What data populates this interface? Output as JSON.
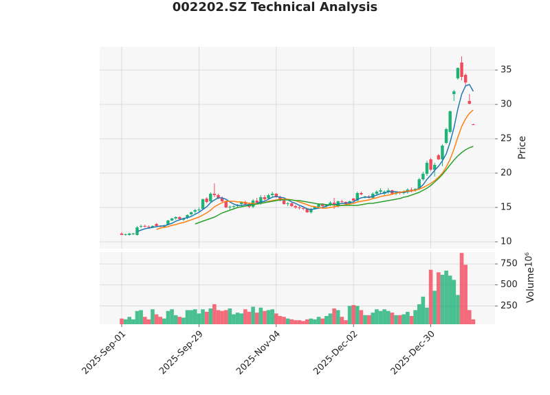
{
  "chart_data": {
    "type": "candlestick",
    "title": "002202.SZ Technical Analysis",
    "y_label": "Price",
    "up_color": "#1eb277",
    "down_color": "#f2495c",
    "grid": true,
    "ylim": [
      9,
      38.4
    ],
    "yticks": [
      10,
      15,
      20,
      25,
      30,
      35
    ],
    "categories": [
      "2025-Sep-01",
      null,
      null,
      null,
      null,
      null,
      null,
      null,
      null,
      null,
      null,
      null,
      null,
      null,
      null,
      null,
      null,
      null,
      null,
      null,
      "2025-Sep-29",
      null,
      null,
      null,
      null,
      null,
      null,
      null,
      null,
      null,
      null,
      null,
      null,
      null,
      null,
      null,
      null,
      null,
      null,
      null,
      "2025-Nov-04",
      null,
      null,
      null,
      null,
      null,
      null,
      null,
      null,
      null,
      null,
      null,
      null,
      null,
      null,
      null,
      null,
      null,
      null,
      null,
      "2025-Dec-02",
      null,
      null,
      null,
      null,
      null,
      null,
      null,
      null,
      null,
      null,
      null,
      null,
      null,
      null,
      null,
      null,
      null,
      null,
      null,
      "2025-Dec-30",
      null,
      null,
      null,
      null,
      null,
      null,
      null,
      null,
      null,
      null,
      null
    ],
    "open": [
      11.2,
      11.0,
      11.0,
      11.1,
      11.0,
      12.2,
      12.3,
      12.2,
      12.1,
      12.6,
      12.3,
      12.2,
      12.5,
      13.1,
      13.4,
      13.6,
      13.2,
      13.5,
      14.0,
      14.4,
      14.6,
      14.8,
      16.3,
      15.9,
      17.0,
      16.8,
      16.4,
      15.9,
      15.0,
      15.1,
      15.2,
      15.5,
      15.8,
      15.5,
      15.1,
      16.0,
      15.7,
      16.5,
      16.3,
      16.8,
      17.0,
      16.5,
      16.0,
      15.5,
      15.6,
      15.2,
      15.0,
      14.9,
      14.8,
      14.3,
      14.8,
      15.1,
      15.5,
      15.2,
      15.4,
      15.7,
      15.3,
      15.9,
      15.8,
      15.5,
      16.3,
      16.0,
      17.1,
      16.5,
      16.6,
      16.4,
      17.0,
      17.3,
      17.0,
      17.3,
      17.5,
      17.0,
      17.2,
      17.1,
      17.3,
      17.6,
      17.5,
      17.7,
      19.1,
      19.9,
      22.0,
      20.5,
      22.6,
      22.0,
      24.4,
      26.0,
      31.5,
      33.8,
      36.1,
      34.3,
      30.5,
      27.1
    ],
    "high": [
      11.4,
      11.2,
      11.3,
      11.3,
      12.3,
      12.5,
      12.5,
      12.4,
      12.4,
      12.7,
      12.4,
      12.5,
      13.2,
      13.5,
      13.7,
      13.7,
      13.5,
      14.0,
      14.4,
      14.8,
      15.0,
      16.3,
      16.5,
      17.2,
      18.5,
      17.0,
      16.6,
      16.0,
      15.3,
      15.3,
      15.5,
      15.9,
      16.0,
      15.7,
      16.2,
      16.4,
      16.8,
      16.8,
      17.0,
      17.3,
      17.1,
      16.7,
      16.1,
      15.8,
      15.7,
      15.4,
      15.2,
      15.1,
      14.9,
      14.9,
      15.2,
      15.6,
      15.6,
      15.5,
      15.9,
      16.4,
      16.0,
      16.1,
      15.9,
      16.0,
      16.4,
      17.3,
      17.3,
      16.7,
      16.8,
      17.2,
      17.5,
      17.8,
      17.5,
      17.8,
      17.6,
      17.3,
      17.4,
      17.5,
      17.8,
      17.9,
      17.8,
      19.3,
      20.2,
      21.8,
      22.2,
      21.5,
      22.8,
      24.2,
      26.6,
      29.1,
      32.1,
      35.4,
      37.0,
      34.5,
      31.5,
      27.2
    ],
    "low": [
      11.0,
      10.9,
      10.9,
      11.0,
      10.9,
      12.0,
      12.1,
      12.0,
      12.0,
      12.2,
      12.1,
      12.1,
      12.4,
      13.0,
      13.2,
      13.2,
      13.0,
      13.3,
      13.8,
      14.1,
      14.3,
      14.6,
      15.6,
      15.7,
      16.5,
      16.2,
      15.8,
      14.9,
      14.7,
      14.8,
      14.9,
      15.2,
      15.3,
      14.9,
      14.9,
      15.6,
      15.4,
      16.0,
      16.1,
      16.5,
      16.4,
      15.9,
      15.4,
      15.2,
      15.1,
      14.8,
      14.7,
      14.6,
      14.2,
      14.1,
      14.7,
      15.0,
      15.1,
      15.0,
      15.2,
      14.8,
      15.0,
      15.7,
      15.4,
      15.4,
      15.9,
      15.9,
      16.8,
      16.3,
      16.3,
      16.3,
      16.8,
      17.0,
      16.8,
      17.0,
      16.9,
      16.8,
      16.9,
      16.9,
      17.0,
      17.2,
      17.3,
      17.5,
      18.9,
      19.6,
      20.3,
      19.5,
      21.9,
      21.0,
      24.2,
      25.8,
      30.5,
      33.6,
      33.5,
      32.8,
      30.0,
      27.0
    ],
    "close": [
      11.0,
      11.1,
      11.2,
      11.2,
      12.1,
      12.3,
      12.2,
      12.1,
      12.3,
      12.3,
      12.2,
      12.4,
      13.1,
      13.4,
      13.6,
      13.3,
      13.4,
      13.9,
      14.3,
      14.6,
      14.7,
      16.2,
      15.8,
      17.0,
      16.8,
      16.4,
      15.9,
      15.0,
      15.1,
      15.2,
      15.3,
      15.8,
      15.5,
      15.1,
      16.0,
      15.7,
      16.5,
      16.2,
      16.8,
      17.0,
      16.5,
      16.0,
      15.5,
      15.6,
      15.2,
      15.0,
      14.9,
      14.8,
      14.3,
      14.8,
      15.1,
      15.5,
      15.2,
      15.4,
      15.7,
      15.3,
      15.9,
      15.8,
      15.5,
      15.9,
      16.0,
      17.1,
      16.9,
      16.6,
      16.4,
      17.0,
      17.3,
      17.5,
      17.3,
      17.5,
      17.0,
      17.2,
      17.1,
      17.3,
      17.6,
      17.5,
      17.7,
      19.1,
      19.9,
      21.5,
      20.5,
      21.2,
      22.0,
      24.0,
      26.4,
      29.0,
      31.9,
      35.3,
      34.0,
      33.2,
      30.1,
      27.0
    ],
    "series": [
      {
        "color": "#1f77b4",
        "values": [
          null,
          null,
          null,
          null,
          11.5,
          11.7,
          11.9,
          12.0,
          12.1,
          12.2,
          12.3,
          12.3,
          12.5,
          12.7,
          13.0,
          13.2,
          13.4,
          13.5,
          13.7,
          14.0,
          14.3,
          14.7,
          15.1,
          15.7,
          16.1,
          16.4,
          16.4,
          16.2,
          15.8,
          15.5,
          15.3,
          15.3,
          15.4,
          15.4,
          15.5,
          15.6,
          15.8,
          15.9,
          16.2,
          16.5,
          16.6,
          16.5,
          16.4,
          16.1,
          15.8,
          15.6,
          15.3,
          15.1,
          14.8,
          14.7,
          14.8,
          14.9,
          15.0,
          15.2,
          15.4,
          15.4,
          15.5,
          15.6,
          15.6,
          15.7,
          15.8,
          16.2,
          16.4,
          16.5,
          16.5,
          16.6,
          16.8,
          17.0,
          17.1,
          17.3,
          17.3,
          17.3,
          17.2,
          17.2,
          17.3,
          17.4,
          17.5,
          17.8,
          18.3,
          19.1,
          19.7,
          20.4,
          21.0,
          21.8,
          22.8,
          24.5,
          26.6,
          29.3,
          31.5,
          32.7,
          32.9,
          31.9
        ]
      },
      {
        "color": "#ff7f0e",
        "values": [
          null,
          null,
          null,
          null,
          null,
          null,
          null,
          null,
          null,
          11.8,
          12.0,
          12.1,
          12.2,
          12.4,
          12.5,
          12.7,
          12.8,
          13.0,
          13.2,
          13.4,
          13.6,
          13.9,
          14.2,
          14.6,
          15.1,
          15.4,
          15.7,
          15.9,
          15.9,
          15.9,
          15.8,
          15.8,
          15.7,
          15.6,
          15.6,
          15.5,
          15.6,
          15.7,
          15.9,
          16.0,
          16.1,
          16.2,
          16.2,
          16.2,
          16.1,
          16.0,
          15.8,
          15.6,
          15.4,
          15.2,
          15.1,
          15.0,
          14.9,
          14.9,
          15.0,
          15.1,
          15.2,
          15.3,
          15.4,
          15.5,
          15.6,
          15.8,
          15.9,
          16.0,
          16.1,
          16.3,
          16.4,
          16.6,
          16.7,
          16.8,
          16.9,
          17.1,
          17.2,
          17.3,
          17.4,
          17.4,
          17.5,
          17.7,
          17.9,
          18.2,
          18.5,
          18.9,
          19.4,
          20.0,
          20.9,
          22.0,
          23.5,
          25.2,
          26.8,
          27.9,
          28.7,
          29.2
        ]
      },
      {
        "color": "#2ca02c",
        "values": [
          null,
          null,
          null,
          null,
          null,
          null,
          null,
          null,
          null,
          null,
          null,
          null,
          null,
          null,
          null,
          null,
          null,
          null,
          null,
          12.6,
          12.8,
          13.0,
          13.2,
          13.4,
          13.6,
          13.9,
          14.2,
          14.4,
          14.6,
          14.8,
          15.0,
          15.1,
          15.2,
          15.3,
          15.4,
          15.5,
          15.6,
          15.7,
          15.8,
          15.9,
          16.0,
          16.1,
          16.1,
          16.1,
          16.1,
          16.0,
          16.0,
          15.9,
          15.8,
          15.7,
          15.6,
          15.5,
          15.5,
          15.4,
          15.4,
          15.4,
          15.3,
          15.3,
          15.3,
          15.3,
          15.3,
          15.3,
          15.4,
          15.5,
          15.6,
          15.6,
          15.7,
          15.8,
          15.9,
          16.0,
          16.1,
          16.2,
          16.3,
          16.5,
          16.6,
          16.8,
          17.0,
          17.2,
          17.5,
          17.8,
          18.2,
          18.7,
          19.2,
          19.8,
          20.5,
          21.2,
          21.9,
          22.5,
          23.0,
          23.4,
          23.7,
          23.9
        ]
      }
    ],
    "volume": {
      "label": "Volume",
      "offset_text": "10⁶",
      "ylim": [
        32,
        890
      ],
      "yticks": [
        250,
        500,
        750
      ],
      "values": [
        100,
        90,
        120,
        90,
        190,
        200,
        120,
        90,
        210,
        150,
        120,
        100,
        190,
        210,
        140,
        120,
        110,
        200,
        200,
        210,
        160,
        210,
        180,
        220,
        270,
        200,
        190,
        200,
        220,
        150,
        170,
        160,
        210,
        180,
        240,
        170,
        230,
        190,
        200,
        210,
        160,
        130,
        120,
        100,
        90,
        80,
        80,
        70,
        90,
        100,
        90,
        120,
        100,
        130,
        160,
        220,
        200,
        120,
        80,
        250,
        260,
        250,
        200,
        140,
        140,
        170,
        210,
        190,
        210,
        190,
        170,
        140,
        140,
        150,
        180,
        130,
        200,
        270,
        360,
        230,
        680,
        430,
        650,
        620,
        670,
        610,
        560,
        380,
        880,
        740,
        200,
        90
      ]
    }
  }
}
